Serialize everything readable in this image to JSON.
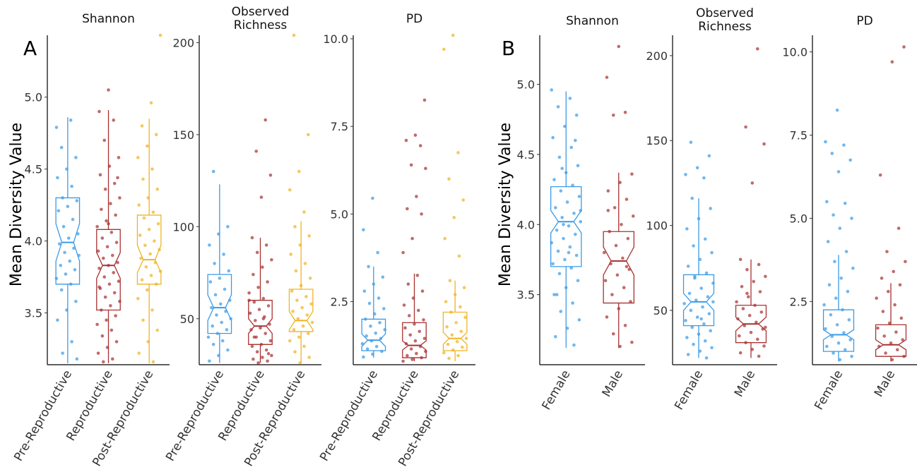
{
  "colors": {
    "Pre-Reproductive": "#3a9be8",
    "Reproductive": "#a83232",
    "Post-Reproductive": "#f0b323",
    "Female": "#3a9be8",
    "Male": "#a83232"
  },
  "chart_data": [
    {
      "type": "box",
      "panel": "A",
      "ylabel": "Mean Diversity Value",
      "facets": [
        {
          "title": "Shannon",
          "categories": [
            "Pre-Reproductive",
            "Reproductive",
            "Post-Reproductive"
          ],
          "ylim": [
            3.14,
            5.43
          ],
          "yticks": [
            3.5,
            4.0,
            4.5,
            5.0
          ],
          "tick_labels": [
            "3.5",
            "4.0",
            "4.5",
            "5.0"
          ],
          "boxes": [
            {
              "min": 3.15,
              "q1": 3.7,
              "median": 3.99,
              "q3": 4.3,
              "max": 4.86,
              "notch_lo": 3.86,
              "notch_hi": 4.12
            },
            {
              "min": 3.15,
              "q1": 3.52,
              "median": 3.83,
              "q3": 4.08,
              "max": 4.91,
              "notch_lo": 3.74,
              "notch_hi": 3.92
            },
            {
              "min": 3.15,
              "q1": 3.7,
              "median": 3.87,
              "q3": 4.18,
              "max": 4.85,
              "notch_lo": 3.78,
              "notch_hi": 3.97
            }
          ],
          "points": [
            [
              4.79,
              4.84,
              4.65,
              4.58,
              4.5,
              4.44,
              4.38,
              4.3,
              4.28,
              4.24,
              4.21,
              4.15,
              4.1,
              4.05,
              4.02,
              3.98,
              3.95,
              3.92,
              3.9,
              3.86,
              3.83,
              3.8,
              3.77,
              3.74,
              3.7,
              3.66,
              3.58,
              3.52,
              3.45,
              3.3,
              3.22,
              3.18
            ],
            [
              5.05,
              4.9,
              4.84,
              4.7,
              4.58,
              4.52,
              4.46,
              4.4,
              4.36,
              4.3,
              4.26,
              4.22,
              4.18,
              4.14,
              4.1,
              4.06,
              4.02,
              3.99,
              3.96,
              3.93,
              3.9,
              3.88,
              3.85,
              3.83,
              3.81,
              3.78,
              3.75,
              3.72,
              3.7,
              3.67,
              3.64,
              3.61,
              3.58,
              3.55,
              3.52,
              3.48,
              3.45,
              3.42,
              3.38,
              3.34,
              3.3,
              3.26,
              3.22,
              3.18,
              3.16,
              4.44,
              4.12,
              3.68
            ],
            [
              5.45,
              4.96,
              4.8,
              4.74,
              4.66,
              4.58,
              4.5,
              4.43,
              4.36,
              4.3,
              4.25,
              4.2,
              4.16,
              4.12,
              4.08,
              4.04,
              4.0,
              3.97,
              3.94,
              3.91,
              3.88,
              3.85,
              3.82,
              3.79,
              3.76,
              3.73,
              3.7,
              3.66,
              3.6,
              3.52,
              3.45,
              3.38,
              3.3,
              3.22,
              3.16
            ]
          ]
        },
        {
          "title": "Observed Richness",
          "categories": [
            "Pre-Reproductive",
            "Reproductive",
            "Post-Reproductive"
          ],
          "ylim": [
            25,
            204
          ],
          "yticks": [
            50,
            100,
            150,
            200
          ],
          "tick_labels": [
            "50",
            "100",
            "150",
            "200"
          ],
          "boxes": [
            {
              "min": 26,
              "q1": 42,
              "median": 56,
              "q3": 74,
              "max": 123,
              "notch_lo": 49,
              "notch_hi": 63
            },
            {
              "min": 26,
              "q1": 36,
              "median": 46,
              "q3": 60,
              "max": 94,
              "notch_lo": 42,
              "notch_hi": 50
            },
            {
              "min": 26,
              "q1": 43,
              "median": 49,
              "q3": 66,
              "max": 103,
              "notch_lo": 44,
              "notch_hi": 54
            }
          ],
          "points": [
            [
              130,
              100,
              96,
              90,
              85,
              80,
              76,
              72,
              70,
              66,
              63,
              60,
              58,
              56,
              54,
              52,
              50,
              48,
              46,
              44,
              42,
              40,
              38,
              36,
              33,
              30,
              27
            ],
            [
              158,
              141,
              128,
              116,
              94,
              90,
              86,
              82,
              78,
              74,
              70,
              67,
              64,
              61,
              59,
              57,
              55,
              53,
              51,
              49,
              47,
              45,
              44,
              42,
              40,
              38,
              36,
              35,
              33,
              32,
              30,
              29,
              28,
              27,
              26,
              60,
              50,
              40,
              31
            ],
            [
              204,
              150,
              130,
              120,
              108,
              100,
              95,
              90,
              85,
              80,
              76,
              72,
              68,
              65,
              62,
              60,
              58,
              56,
              54,
              52,
              50,
              48,
              46,
              44,
              42,
              40,
              38,
              35,
              32,
              29,
              26
            ]
          ]
        },
        {
          "title": "PD",
          "categories": [
            "Pre-Reproductive",
            "Reproductive",
            "Post-Reproductive"
          ],
          "ylim": [
            0.7,
            10.1
          ],
          "yticks": [
            2.5,
            5.0,
            7.5,
            10.0
          ],
          "tick_labels": [
            "2.5",
            "5.0",
            "7.5",
            "10.0"
          ],
          "boxes": [
            {
              "min": 0.9,
              "q1": 1.1,
              "median": 1.4,
              "q3": 2.0,
              "max": 3.5,
              "notch_lo": 1.22,
              "notch_hi": 1.58
            },
            {
              "min": 0.8,
              "q1": 0.9,
              "median": 1.25,
              "q3": 1.9,
              "max": 3.3,
              "notch_lo": 1.12,
              "notch_hi": 1.38
            },
            {
              "min": 0.8,
              "q1": 1.1,
              "median": 1.45,
              "q3": 2.2,
              "max": 3.1,
              "notch_lo": 1.28,
              "notch_hi": 1.62
            }
          ],
          "points": [
            [
              5.45,
              4.55,
              3.9,
              3.5,
              3.2,
              3.0,
              2.8,
              2.6,
              2.45,
              2.3,
              2.15,
              2.0,
              1.9,
              1.8,
              1.7,
              1.6,
              1.52,
              1.45,
              1.38,
              1.3,
              1.22,
              1.15,
              1.08,
              1.0,
              0.92
            ],
            [
              8.25,
              7.25,
              7.1,
              6.95,
              6.4,
              6.3,
              5.5,
              5.15,
              5.0,
              4.3,
              3.9,
              3.25,
              3.0,
              2.8,
              2.6,
              2.4,
              2.25,
              2.1,
              1.98,
              1.86,
              1.75,
              1.65,
              1.55,
              1.45,
              1.38,
              1.3,
              1.22,
              1.15,
              1.08,
              1.02,
              0.96,
              0.9,
              0.85,
              0.8
            ],
            [
              10.1,
              9.7,
              6.75,
              6.0,
              5.4,
              4.9,
              4.3,
              3.8,
              3.1,
              2.9,
              2.7,
              2.5,
              2.35,
              2.2,
              2.05,
              1.9,
              1.78,
              1.65,
              1.55,
              1.45,
              1.36,
              1.28,
              1.2,
              1.12,
              1.04,
              0.96,
              0.88
            ]
          ]
        }
      ]
    },
    {
      "type": "box",
      "panel": "B",
      "ylabel": "Mean Diversity Value",
      "facets": [
        {
          "title": "Shannon",
          "categories": [
            "Female",
            "Male"
          ],
          "ylim": [
            3.0,
            5.35
          ],
          "yticks": [
            3.5,
            4.0,
            4.5,
            5.0
          ],
          "tick_labels": [
            "3.5",
            "4.0",
            "4.5",
            "5.0"
          ],
          "boxes": [
            {
              "min": 3.12,
              "q1": 3.7,
              "median": 4.02,
              "q3": 4.27,
              "max": 4.95,
              "notch_lo": 3.94,
              "notch_hi": 4.1
            },
            {
              "min": 3.12,
              "q1": 3.44,
              "median": 3.74,
              "q3": 3.95,
              "max": 4.37,
              "notch_lo": 3.64,
              "notch_hi": 3.84
            }
          ],
          "points": [
            [
              4.96,
              4.9,
              4.84,
              4.78,
              4.7,
              4.62,
              4.55,
              4.48,
              4.42,
              4.37,
              4.32,
              4.28,
              4.24,
              4.2,
              4.16,
              4.12,
              4.08,
              4.05,
              4.02,
              3.99,
              3.96,
              3.93,
              3.9,
              3.87,
              3.84,
              3.81,
              3.78,
              3.75,
              3.72,
              3.69,
              3.65,
              3.6,
              3.55,
              3.5,
              3.44,
              3.38,
              3.32,
              3.26,
              3.2,
              3.14,
              4.4,
              4.1,
              3.8,
              3.5,
              4.6,
              4.0
            ],
            [
              5.27,
              5.05,
              4.8,
              4.78,
              4.36,
              4.3,
              4.24,
              4.18,
              4.12,
              4.06,
              4.0,
              3.95,
              3.9,
              3.85,
              3.8,
              3.76,
              3.72,
              3.68,
              3.64,
              3.6,
              3.55,
              3.5,
              3.45,
              3.4,
              3.34,
              3.28,
              3.22,
              3.16,
              3.13,
              4.1,
              3.7
            ]
          ]
        },
        {
          "title": "Observed Richness",
          "categories": [
            "Female",
            "Male"
          ],
          "ylim": [
            18,
            212
          ],
          "yticks": [
            50,
            100,
            150,
            200
          ],
          "tick_labels": [
            "50",
            "100",
            "150",
            "200"
          ],
          "boxes": [
            {
              "min": 22,
              "q1": 41,
              "median": 55,
              "q3": 71,
              "max": 116,
              "notch_lo": 50,
              "notch_hi": 60
            },
            {
              "min": 22,
              "q1": 31,
              "median": 42,
              "q3": 53,
              "max": 80,
              "notch_lo": 38,
              "notch_hi": 46
            }
          ],
          "points": [
            [
              149,
              141,
              134,
              130,
              128,
              116,
              110,
              104,
              98,
              92,
              88,
              84,
              80,
              76,
              72,
              69,
              66,
              63,
              60,
              58,
              56,
              54,
              52,
              50,
              48,
              46,
              44,
              42,
              40,
              38,
              36,
              34,
              32,
              30,
              28,
              26,
              24,
              22,
              70,
              55,
              45
            ],
            [
              204,
              158,
              148,
              125,
              80,
              77,
              74,
              70,
              67,
              64,
              61,
              58,
              55,
              53,
              51,
              49,
              47,
              45,
              43,
              41,
              39,
              37,
              35,
              33,
              31,
              29,
              27,
              25,
              23,
              60,
              40
            ]
          ]
        },
        {
          "title": "PD",
          "categories": [
            "Female",
            "Male"
          ],
          "ylim": [
            0.6,
            10.5
          ],
          "yticks": [
            2.5,
            5.0,
            7.5,
            10.0
          ],
          "tick_labels": [
            "2.5",
            "5.0",
            "7.5",
            "10.0"
          ],
          "boxes": [
            {
              "min": 0.7,
              "q1": 1.0,
              "median": 1.5,
              "q3": 2.25,
              "max": 3.9,
              "notch_lo": 1.35,
              "notch_hi": 1.65
            },
            {
              "min": 0.7,
              "q1": 0.85,
              "median": 1.2,
              "q3": 1.8,
              "max": 3.05,
              "notch_lo": 1.05,
              "notch_hi": 1.35
            }
          ],
          "points": [
            [
              8.25,
              7.3,
              7.2,
              6.95,
              6.75,
              6.4,
              5.5,
              5.45,
              5.1,
              5.0,
              4.7,
              4.3,
              4.0,
              3.7,
              3.5,
              3.2,
              3.0,
              2.8,
              2.6,
              2.4,
              2.25,
              2.1,
              1.95,
              1.8,
              1.68,
              1.56,
              1.45,
              1.35,
              1.25,
              1.15,
              1.05,
              0.95,
              0.85,
              0.75
            ],
            [
              10.15,
              9.7,
              6.3,
              4.7,
              4.0,
              3.7,
              3.4,
              3.2,
              3.0,
              2.8,
              2.6,
              2.4,
              2.2,
              2.0,
              1.85,
              1.7,
              1.58,
              1.46,
              1.35,
              1.25,
              1.15,
              1.05,
              0.95,
              0.85,
              0.75
            ]
          ]
        }
      ]
    }
  ]
}
